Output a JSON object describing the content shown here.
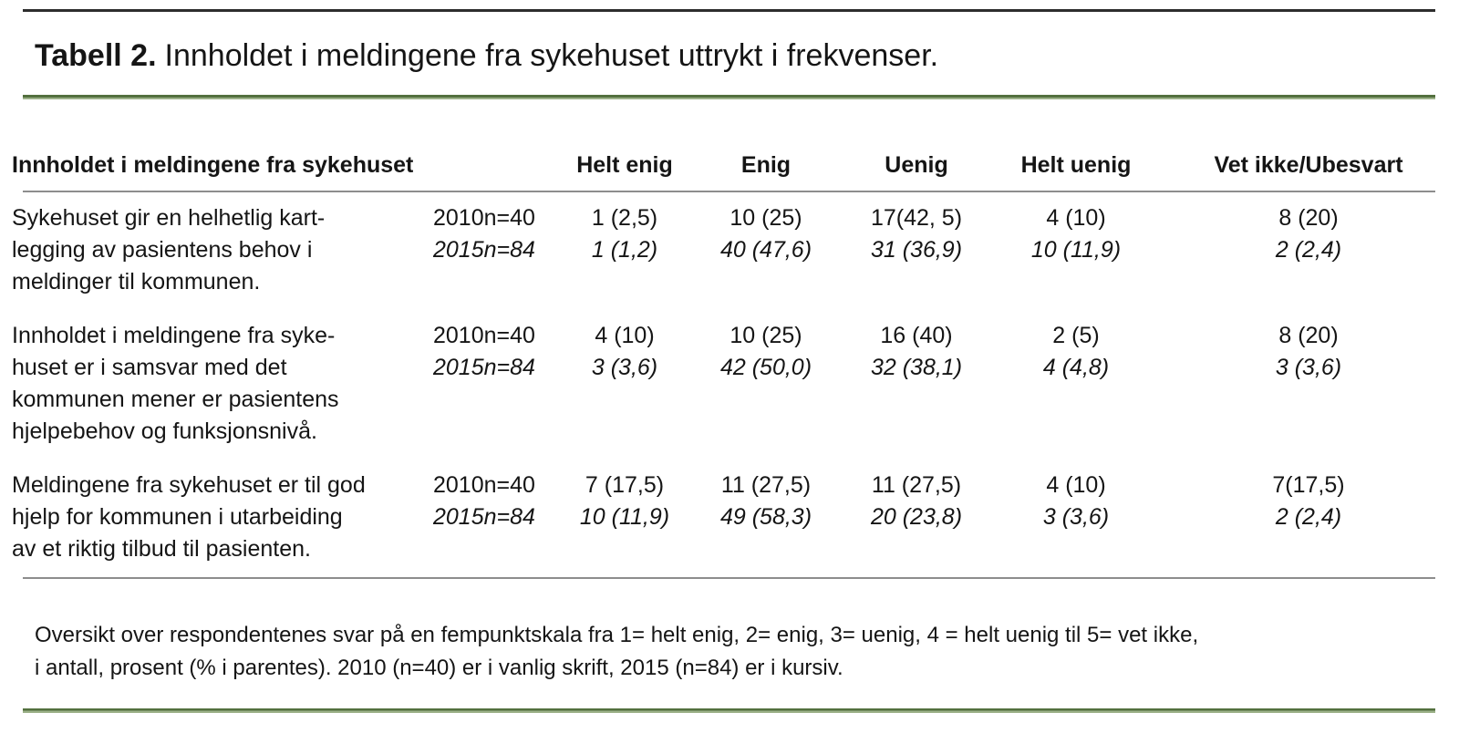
{
  "title": {
    "label": "Tabell 2.",
    "text": "Innholdet i meldingene fra sykehuset uttrykt i frekvenser."
  },
  "header": {
    "statement": "Innholdet i meldingene fra sykehuset",
    "year": "",
    "cols": [
      "Helt enig",
      "Enig",
      "Uenig",
      "Helt uenig",
      "Vet ikke/Ubesvart"
    ]
  },
  "rows": [
    {
      "statement": "Sykehuset gir en helhetlig kart-\nlegging av pasientens behov i\nmeldinger til kommunen.",
      "y2010": {
        "label": "2010n=40",
        "cells": [
          "1 (2,5)",
          "10 (25)",
          "17(42, 5)",
          "4 (10)",
          "8 (20)"
        ]
      },
      "y2015": {
        "label": "2015n=84",
        "cells": [
          "1 (1,2)",
          "40 (47,6)",
          "31 (36,9)",
          "10 (11,9)",
          "2 (2,4)"
        ]
      }
    },
    {
      "statement": "Innholdet i meldingene fra syke-\nhuset er i samsvar med det\nkommunen mener er pasientens\nhjelpebehov og funksjonsnivå.",
      "y2010": {
        "label": "2010n=40",
        "cells": [
          "4 (10)",
          "10 (25)",
          "16 (40)",
          "2 (5)",
          "8 (20)"
        ]
      },
      "y2015": {
        "label": "2015n=84",
        "cells": [
          "3 (3,6)",
          "42 (50,0)",
          "32 (38,1)",
          "4 (4,8)",
          "3 (3,6)"
        ]
      }
    },
    {
      "statement": "Meldingene fra sykehuset er til god\nhjelp for kommunen i utarbeiding\nav et riktig tilbud til pasienten.",
      "y2010": {
        "label": "2010n=40",
        "cells": [
          "7 (17,5)",
          "11 (27,5)",
          "11 (27,5)",
          "4 (10)",
          "7(17,5)"
        ]
      },
      "y2015": {
        "label": "2015n=84",
        "cells": [
          "10 (11,9)",
          "49 (58,3)",
          "20 (23,8)",
          "3 (3,6)",
          "2 (2,4)"
        ]
      }
    }
  ],
  "footnote": "Oversikt over respondentenes svar på en fempunktskala fra 1= helt enig, 2= enig, 3= uenig, 4 = helt uenig til 5= vet ikke,\ni antall, prosent (% i parentes). 2010 (n=40) er i vanlig skrift, 2015 (n=84) er i kursiv.",
  "colors": {
    "accent_green": "#53703e",
    "accent_green_light": "#9cb189",
    "rule_gray": "#8d8d8d",
    "rule_dark": "#2d2d2d"
  }
}
